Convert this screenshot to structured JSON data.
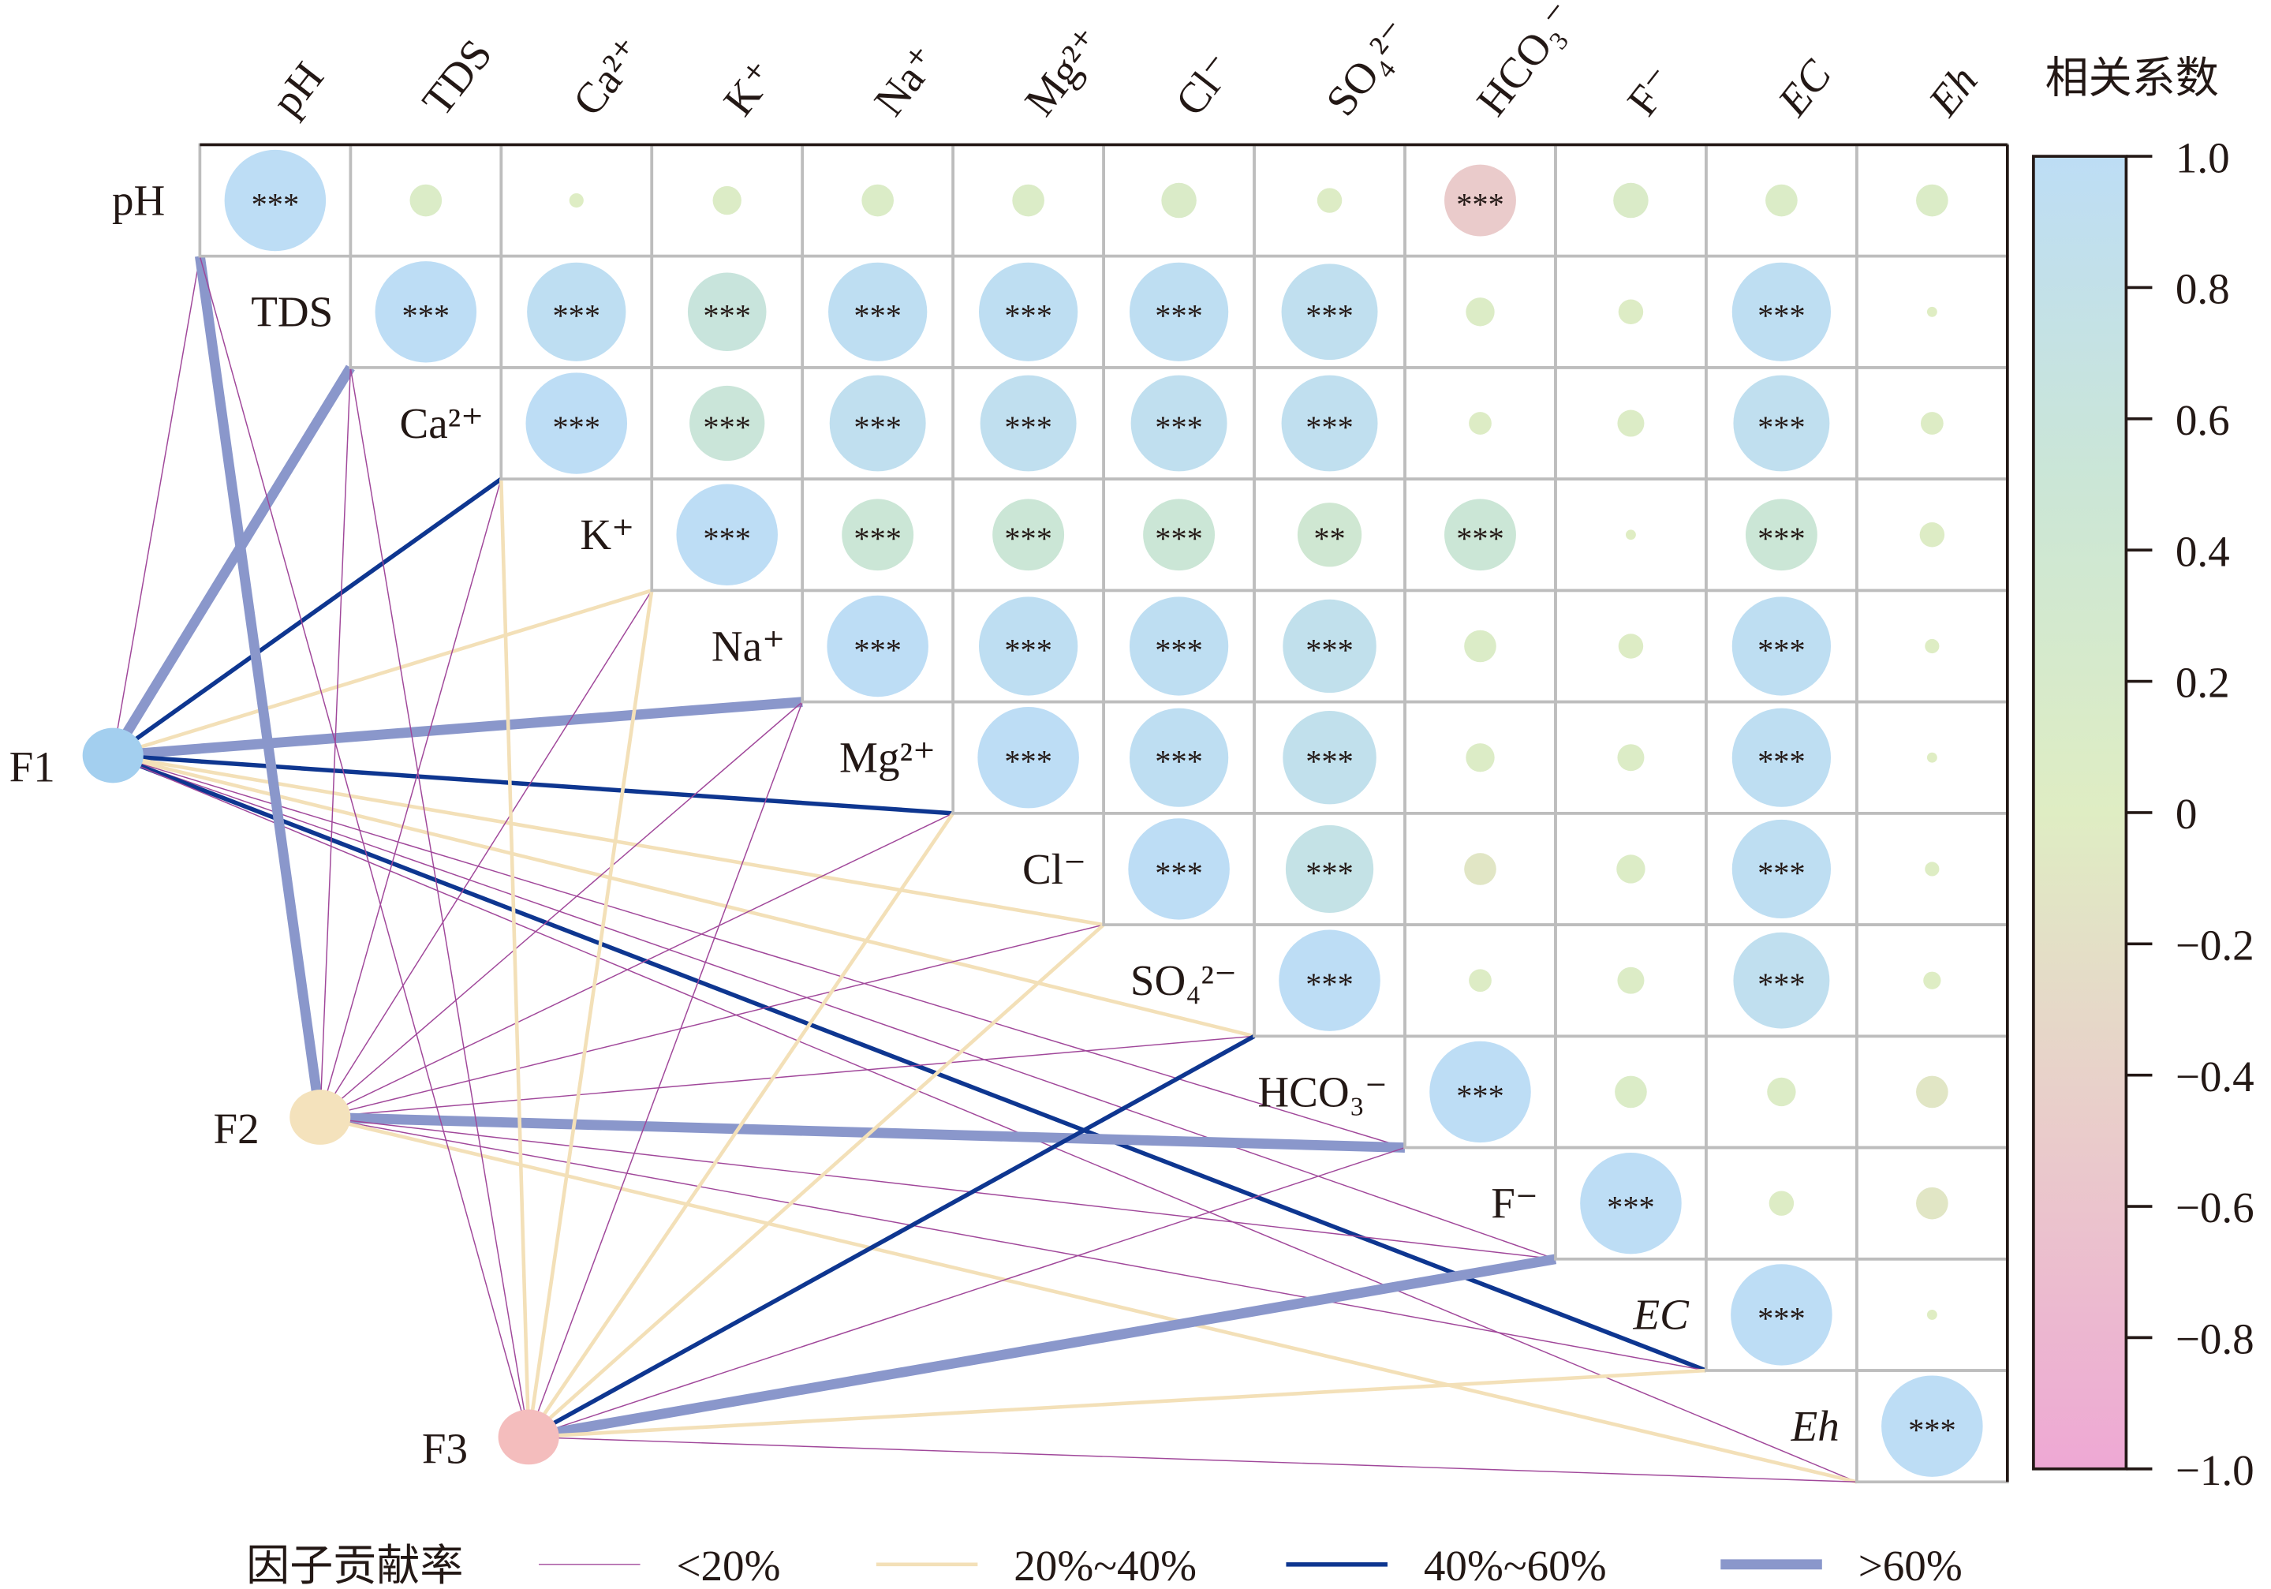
{
  "chart_data": {
    "type": "heatmap",
    "subtype": "correlation matrix with factor contribution links",
    "variables": [
      "pH",
      "TDS",
      "Ca²⁺",
      "K⁺",
      "Na⁺",
      "Mg²⁺",
      "Cl⁻",
      "SO₄²⁻",
      "HCO₃⁻",
      "F⁻",
      "EC",
      "Eh"
    ],
    "italic_variables": [
      "EC",
      "Eh"
    ],
    "correlation_upper": [
      [
        1,
        0.1,
        0.02,
        0.08,
        0.1,
        0.1,
        0.12,
        0.06,
        -0.5,
        0.12,
        0.1,
        0.1
      ],
      [
        null,
        1,
        0.95,
        0.6,
        0.95,
        0.95,
        0.95,
        0.9,
        0.08,
        0.06,
        0.95,
        0.01
      ],
      [
        null,
        null,
        1,
        0.55,
        0.9,
        0.9,
        0.9,
        0.9,
        0.05,
        0.07,
        0.9,
        0.05
      ],
      [
        null,
        null,
        null,
        1,
        0.5,
        0.5,
        0.5,
        0.4,
        0.5,
        0.01,
        0.5,
        0.06
      ],
      [
        null,
        null,
        null,
        null,
        1,
        0.95,
        0.95,
        0.85,
        0.1,
        0.06,
        0.95,
        0.02
      ],
      [
        null,
        null,
        null,
        null,
        null,
        1,
        0.95,
        0.85,
        0.08,
        0.07,
        0.95,
        0.01
      ],
      [
        null,
        null,
        null,
        null,
        null,
        null,
        1,
        0.75,
        -0.1,
        0.08,
        0.95,
        0.02
      ],
      [
        null,
        null,
        null,
        null,
        null,
        null,
        null,
        1,
        0.05,
        0.07,
        0.9,
        0.03
      ],
      [
        null,
        null,
        null,
        null,
        null,
        null,
        null,
        null,
        1,
        0.1,
        0.08,
        -0.1
      ],
      [
        null,
        null,
        null,
        null,
        null,
        null,
        null,
        null,
        null,
        1,
        0.06,
        -0.1
      ],
      [
        null,
        null,
        null,
        null,
        null,
        null,
        null,
        null,
        null,
        null,
        1,
        0.01
      ],
      [
        null,
        null,
        null,
        null,
        null,
        null,
        null,
        null,
        null,
        null,
        null,
        1
      ]
    ],
    "significance_upper": [
      [
        "***",
        "",
        "",
        "",
        "",
        "",
        "",
        "",
        "***",
        "",
        "",
        ""
      ],
      [
        "",
        "***",
        "***",
        "***",
        "***",
        "***",
        "***",
        "***",
        "",
        "",
        "***",
        ""
      ],
      [
        "",
        "",
        "***",
        "***",
        "***",
        "***",
        "***",
        "***",
        "",
        "",
        "***",
        ""
      ],
      [
        "",
        "",
        "",
        "***",
        "***",
        "***",
        "***",
        "**",
        "***",
        "",
        "***",
        ""
      ],
      [
        "",
        "",
        "",
        "",
        "***",
        "***",
        "***",
        "***",
        "",
        "",
        "***",
        ""
      ],
      [
        "",
        "",
        "",
        "",
        "",
        "***",
        "***",
        "***",
        "",
        "",
        "***",
        ""
      ],
      [
        "",
        "",
        "",
        "",
        "",
        "",
        "***",
        "***",
        "",
        "",
        "***",
        ""
      ],
      [
        "",
        "",
        "",
        "",
        "",
        "",
        "",
        "***",
        "",
        "",
        "***",
        ""
      ],
      [
        "",
        "",
        "",
        "",
        "",
        "",
        "",
        "",
        "***",
        "",
        "",
        ""
      ],
      [
        "",
        "",
        "",
        "",
        "",
        "",
        "",
        "",
        "",
        "***",
        "",
        ""
      ],
      [
        "",
        "",
        "",
        "",
        "",
        "",
        "",
        "",
        "",
        "",
        "***",
        ""
      ],
      [
        "",
        "",
        "",
        "",
        "",
        "",
        "",
        "",
        "",
        "",
        "",
        "***"
      ]
    ],
    "colorbar": {
      "title": "相关系数",
      "range": [
        -1,
        1
      ],
      "ticks": [
        "1.0",
        "0.8",
        "0.6",
        "0.4",
        "0.2",
        "0",
        "−0.2",
        "−0.4",
        "−0.6",
        "−0.8",
        "−1.0"
      ],
      "colors": {
        "neg1": "#EEA8D4",
        "neg05": "#EACBCB",
        "zero": "#DFEDC3",
        "pos05": "#CBE6D6",
        "pos1": "#BDDDF5"
      }
    },
    "factors": [
      {
        "name": "F1",
        "color": "#A3CFEF",
        "links": [
          "<20%",
          ">60%",
          "40%~60%",
          "20%~40%",
          ">60%",
          "40%~60%",
          "20%~40%",
          "20%~40%",
          "<20%",
          "<20%",
          "40%~60%",
          "<20%"
        ]
      },
      {
        "name": "F2",
        "color": "#F4E2BC",
        "links": [
          ">60%",
          "<20%",
          "<20%",
          "<20%",
          "<20%",
          "<20%",
          "<20%",
          "<20%",
          ">60%",
          "<20%",
          "<20%",
          "20%~40%"
        ]
      },
      {
        "name": "F3",
        "color": "#F4BDBD",
        "links": [
          "<20%",
          "<20%",
          "20%~40%",
          "20%~40%",
          "<20%",
          "20%~40%",
          "20%~40%",
          "40%~60%",
          "<20%",
          ">60%",
          "20%~40%",
          "<20%"
        ]
      }
    ],
    "legend": {
      "title": "因子贡献率",
      "placement": "bottom",
      "items": [
        {
          "label": "<20%",
          "color": "#A0479A"
        },
        {
          "label": "20%~40%",
          "color": "#F3E0B8"
        },
        {
          "label": "40%~60%",
          "color": "#0E3690"
        },
        {
          "label": ">60%",
          "color": "#8A97CB"
        }
      ]
    }
  }
}
